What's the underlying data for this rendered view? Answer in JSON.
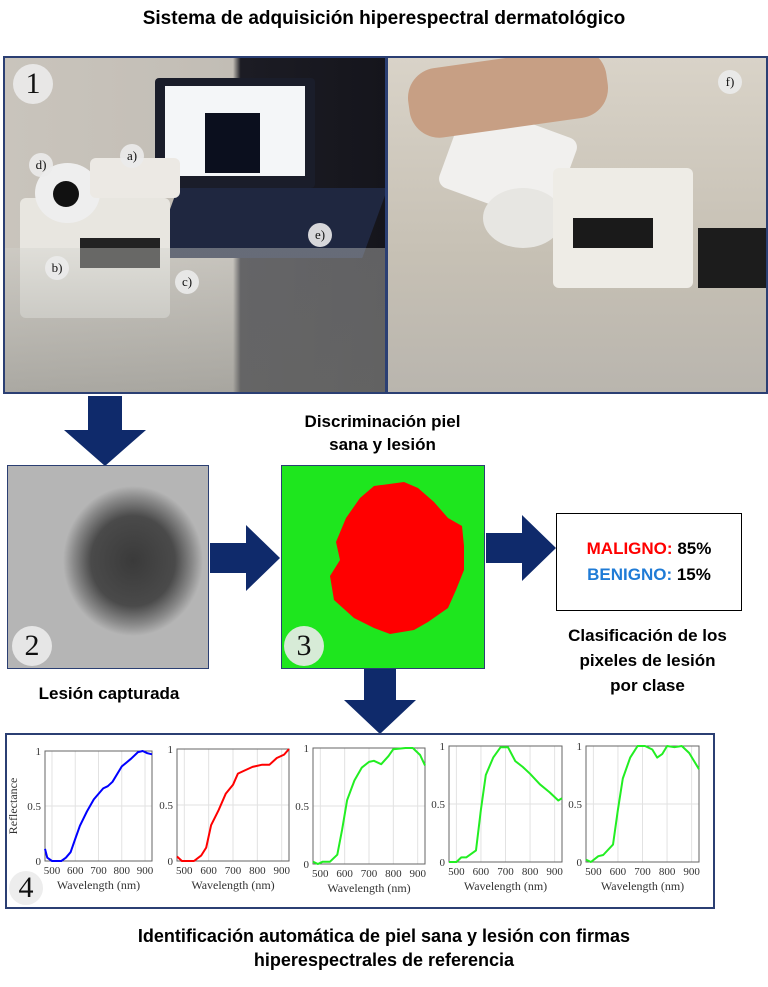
{
  "header": {
    "title": "Sistema de adquisición hiperespectral dermatológico"
  },
  "photo1": {
    "number": "1",
    "labels": [
      "a)",
      "b)",
      "c)",
      "d)",
      "e)"
    ]
  },
  "photo2": {
    "label": "f)"
  },
  "step2": {
    "number": "2",
    "caption": "Lesión capturada"
  },
  "step3": {
    "number": "3",
    "caption_line1": "Discriminación piel",
    "caption_line2": "sana y lesión",
    "colors": {
      "healthy": "#1ee61e",
      "lesion": "#ff0000"
    }
  },
  "result": {
    "malignant_label": "MALIGNO:",
    "malignant_value": "85%",
    "benign_label": "BENIGNO:",
    "benign_value": "15%",
    "malignant_color": "#ff0000",
    "benign_color": "#1f7bd6",
    "caption_line1": "Clasificación de los",
    "caption_line2": "pixeles de lesión",
    "caption_line3": "por clase"
  },
  "step4": {
    "number": "4"
  },
  "footer": {
    "line1": "Identificación automática de piel sana y lesión con firmas",
    "line2": "hiperespectrales de referencia"
  },
  "chart_data": [
    {
      "type": "line",
      "xlabel": "Wavelength (nm)",
      "ylabel": "Reflectance",
      "xlim": [
        470,
        930
      ],
      "ylim": [
        0,
        1
      ],
      "xticks": [
        500,
        600,
        700,
        800,
        900
      ],
      "yticks": [
        0,
        0.5,
        1
      ],
      "grid": true,
      "color": "#0000ff",
      "x": [
        470,
        480,
        500,
        540,
        560,
        580,
        600,
        620,
        650,
        680,
        720,
        740,
        760,
        800,
        840,
        870,
        890,
        910,
        930
      ],
      "y": [
        0.11,
        0.03,
        0,
        0,
        0.03,
        0.08,
        0.2,
        0.32,
        0.45,
        0.56,
        0.66,
        0.68,
        0.72,
        0.86,
        0.93,
        0.99,
        1.0,
        0.98,
        0.97
      ]
    },
    {
      "type": "line",
      "xlabel": "Wavelength (nm)",
      "ylabel": "",
      "xlim": [
        470,
        930
      ],
      "ylim": [
        0,
        1
      ],
      "xticks": [
        500,
        600,
        700,
        800,
        900
      ],
      "yticks": [
        0,
        0.5,
        1
      ],
      "grid": true,
      "color": "#ff0000",
      "x": [
        470,
        490,
        520,
        540,
        570,
        590,
        610,
        640,
        670,
        700,
        720,
        740,
        780,
        820,
        850,
        880,
        910,
        930
      ],
      "y": [
        0.04,
        0,
        0,
        0,
        0.05,
        0.12,
        0.32,
        0.45,
        0.6,
        0.68,
        0.78,
        0.8,
        0.84,
        0.86,
        0.86,
        0.92,
        0.95,
        1.0
      ]
    },
    {
      "type": "line",
      "xlabel": "Wavelength (nm)",
      "ylabel": "",
      "xlim": [
        470,
        930
      ],
      "ylim": [
        0,
        1
      ],
      "xticks": [
        500,
        600,
        700,
        800,
        900
      ],
      "yticks": [
        0,
        0.5,
        1
      ],
      "grid": true,
      "color": "#22ee22",
      "x": [
        470,
        490,
        510,
        540,
        570,
        590,
        610,
        640,
        670,
        700,
        720,
        750,
        780,
        800,
        850,
        880,
        910,
        930
      ],
      "y": [
        0.02,
        0,
        0.02,
        0.02,
        0.08,
        0.3,
        0.55,
        0.72,
        0.83,
        0.88,
        0.89,
        0.86,
        0.93,
        0.99,
        1.0,
        1.0,
        0.94,
        0.85
      ]
    },
    {
      "type": "line",
      "xlabel": "Wavelength (nm)",
      "ylabel": "",
      "xlim": [
        470,
        930
      ],
      "ylim": [
        0,
        1
      ],
      "xticks": [
        500,
        600,
        700,
        800,
        900
      ],
      "yticks": [
        0,
        0.5,
        1
      ],
      "grid": true,
      "color": "#22ee22",
      "x": [
        470,
        500,
        520,
        540,
        580,
        600,
        620,
        650,
        680,
        710,
        740,
        770,
        800,
        840,
        880,
        915,
        930
      ],
      "y": [
        0,
        0,
        0.04,
        0.04,
        0.1,
        0.45,
        0.75,
        0.9,
        0.99,
        0.99,
        0.87,
        0.82,
        0.76,
        0.67,
        0.6,
        0.53,
        0.55
      ]
    },
    {
      "type": "line",
      "xlabel": "Wavelength (nm)",
      "ylabel": "",
      "xlim": [
        470,
        930
      ],
      "ylim": [
        0,
        1
      ],
      "xticks": [
        500,
        600,
        700,
        800,
        900
      ],
      "yticks": [
        0,
        0.5,
        1
      ],
      "grid": true,
      "color": "#22ee22",
      "x": [
        470,
        490,
        520,
        540,
        580,
        600,
        620,
        650,
        680,
        710,
        740,
        760,
        780,
        800,
        830,
        860,
        890,
        930
      ],
      "y": [
        0.02,
        0,
        0.05,
        0.06,
        0.15,
        0.45,
        0.72,
        0.9,
        1.0,
        1.0,
        0.97,
        0.9,
        0.93,
        1.0,
        0.99,
        1.0,
        0.94,
        0.8
      ]
    }
  ]
}
